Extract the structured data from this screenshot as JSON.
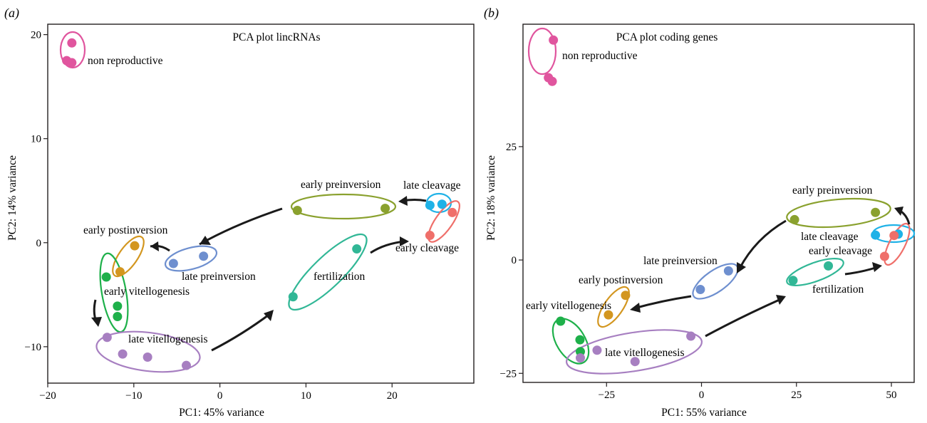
{
  "panels": [
    {
      "label": "(a)",
      "title": "PCA plot lincRNAs",
      "xlabel": "PC1: 45% variance",
      "ylabel": "PC2: 14% variance",
      "xticks": [
        "−20",
        "−10",
        "0",
        "10",
        "20"
      ],
      "yticks": [
        "20",
        "10",
        "0",
        "−10"
      ]
    },
    {
      "label": "(b)",
      "title": "PCA plot coding genes",
      "xlabel": "PC1: 55% variance",
      "ylabel": "PC2: 18% variance",
      "xticks": [
        "−25",
        "0",
        "25",
        "50"
      ],
      "yticks": [
        "25",
        "0",
        "−25"
      ]
    }
  ],
  "chart_data": [
    {
      "type": "scatter",
      "title": "PCA plot lincRNAs",
      "xlabel": "PC1: 45% variance",
      "ylabel": "PC2: 14% variance",
      "xlim": [
        -20,
        29.5
      ],
      "ylim": [
        -13.5,
        21
      ],
      "xticks": [
        -20,
        -10,
        0,
        10,
        20
      ],
      "yticks": [
        20,
        10,
        0,
        -10
      ],
      "grid": false,
      "groups": [
        {
          "label": "non reproductive",
          "color": "#e0559e",
          "points": [
            [
              -17.2,
              19.2
            ],
            [
              -17.8,
              17.5
            ],
            [
              -17.2,
              17.3
            ]
          ]
        },
        {
          "label": "early preinversion",
          "color": "#8aa12e",
          "points": [
            [
              9,
              3.1
            ],
            [
              19.2,
              3.3
            ]
          ]
        },
        {
          "label": "late cleavage",
          "color": "#1fb2e7",
          "points": [
            [
              24.4,
              3.6
            ],
            [
              25.8,
              3.7
            ]
          ]
        },
        {
          "label": "early cleavage",
          "color": "#ef6f6a",
          "points": [
            [
              27,
              2.9
            ],
            [
              24.4,
              0.7
            ]
          ]
        },
        {
          "label": "early postinversion",
          "color": "#d3961f",
          "points": [
            [
              -9.9,
              -0.3
            ],
            [
              -11.6,
              -2.8
            ]
          ]
        },
        {
          "label": "late preinversion",
          "color": "#6e8fcf",
          "points": [
            [
              -1.9,
              -1.3
            ],
            [
              -5.4,
              -2
            ]
          ]
        },
        {
          "label": "fertilization",
          "color": "#31b796",
          "points": [
            [
              15.9,
              -0.6
            ],
            [
              8.5,
              -5.2
            ]
          ]
        },
        {
          "label": "early vitellogenesis",
          "color": "#1eb04a",
          "points": [
            [
              -13.2,
              -3.3
            ],
            [
              -11.9,
              -6.1
            ],
            [
              -11.9,
              -7.1
            ]
          ]
        },
        {
          "label": "late vitellogenesis",
          "color": "#a77fc1",
          "points": [
            [
              -13.1,
              -9.1
            ],
            [
              -11.3,
              -10.7
            ],
            [
              -8.4,
              -11
            ],
            [
              -3.9,
              -11.8
            ]
          ]
        }
      ]
    },
    {
      "type": "scatter",
      "title": "PCA plot coding genes",
      "xlabel": "PC1: 55% variance",
      "ylabel": "PC2: 18% variance",
      "xlim": [
        -47,
        56
      ],
      "ylim": [
        -27,
        52
      ],
      "xticks": [
        -25,
        0,
        25,
        50
      ],
      "yticks": [
        25,
        0,
        -25
      ],
      "grid": false,
      "groups": [
        {
          "label": "non reproductive",
          "color": "#e0559e",
          "points": [
            [
              -39,
              48.5
            ],
            [
              -40.3,
              40.2
            ],
            [
              -39.3,
              39.4
            ]
          ]
        },
        {
          "label": "early preinversion",
          "color": "#8aa12e",
          "points": [
            [
              24.5,
              8.9
            ],
            [
              45.8,
              10.5
            ]
          ]
        },
        {
          "label": "late cleavage",
          "color": "#1fb2e7",
          "points": [
            [
              45.8,
              5.5
            ],
            [
              51.8,
              5.7
            ]
          ]
        },
        {
          "label": "early cleavage",
          "color": "#ef6f6a",
          "points": [
            [
              50.7,
              5.4
            ],
            [
              48.2,
              0.8
            ]
          ]
        },
        {
          "label": "late preinversion",
          "color": "#6e8fcf",
          "points": [
            [
              7.1,
              -2.4
            ],
            [
              -0.3,
              -6.5
            ]
          ]
        },
        {
          "label": "fertilization",
          "color": "#31b796",
          "points": [
            [
              33.4,
              -1.3
            ],
            [
              24.1,
              -4.5
            ]
          ]
        },
        {
          "label": "early postinversion",
          "color": "#d3961f",
          "points": [
            [
              -20,
              -7.8
            ],
            [
              -24.5,
              -12.1
            ]
          ]
        },
        {
          "label": "early vitellogenesis",
          "color": "#1eb04a",
          "points": [
            [
              -37.1,
              -13.5
            ],
            [
              -32,
              -17.6
            ],
            [
              -31.9,
              -20.2
            ]
          ]
        },
        {
          "label": "late vitellogenesis",
          "color": "#a77fc1",
          "points": [
            [
              -2.8,
              -16.8
            ],
            [
              -27.5,
              -19.9
            ],
            [
              -31.9,
              -21.6
            ],
            [
              -17.5,
              -22.4
            ]
          ]
        }
      ]
    }
  ]
}
